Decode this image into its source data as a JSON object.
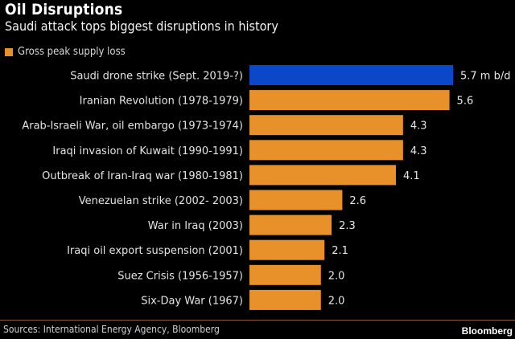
{
  "header": {
    "title": "Oil Disruptions",
    "subtitle": "Saudi attack tops biggest disruptions in history"
  },
  "footer": {
    "source": "Sources: International Energy Agency, Bloomberg",
    "brand": "Bloomberg"
  },
  "colors": {
    "highlight": "#0b47c9",
    "bar": "#e8902a",
    "background": "#000000"
  },
  "chart_data": {
    "type": "bar",
    "orientation": "horizontal",
    "title": "Oil Disruptions",
    "subtitle": "Saudi attack tops biggest disruptions in history",
    "xlabel": "",
    "ylabel": "",
    "unit": "m b/d",
    "legend": {
      "entries": [
        "Gross peak supply loss"
      ],
      "placement": "top-left"
    },
    "grid": false,
    "xlim": [
      0,
      5.7
    ],
    "categories": [
      "Saudi drone strike (Sept. 2019-?)",
      "Iranian Revolution (1978-1979)",
      "Arab-Israeli War, oil embargo (1973-1974)",
      "Iraqi invasion of Kuwait (1990-1991)",
      "Outbreak of Iran-Iraq war (1980-1981)",
      "Venezuelan strike (2002- 2003)",
      "War in Iraq (2003)",
      "Iraqi oil export suspension (2001)",
      "Suez Crisis (1956-1957)",
      "Six-Day War (1967)"
    ],
    "series": [
      {
        "name": "Gross peak supply loss",
        "values": [
          5.7,
          5.6,
          4.3,
          4.3,
          4.1,
          2.6,
          2.3,
          2.1,
          2.0,
          2.0
        ]
      }
    ],
    "value_labels": [
      "5.7 m b/d",
      "5.6",
      "4.3",
      "4.3",
      "4.1",
      "2.6",
      "2.3",
      "2.1",
      "2.0",
      "2.0"
    ],
    "highlighted_index": 0
  }
}
